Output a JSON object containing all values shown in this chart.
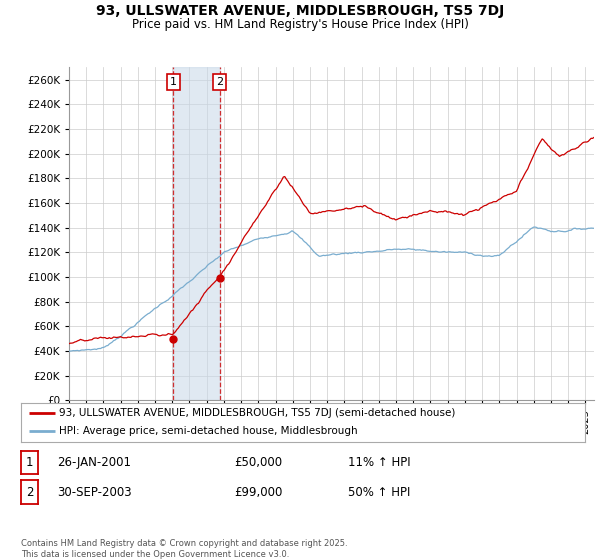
{
  "title": "93, ULLSWATER AVENUE, MIDDLESBROUGH, TS5 7DJ",
  "subtitle": "Price paid vs. HM Land Registry's House Price Index (HPI)",
  "ylim": [
    0,
    270000
  ],
  "yticks": [
    0,
    20000,
    40000,
    60000,
    80000,
    100000,
    120000,
    140000,
    160000,
    180000,
    200000,
    220000,
    240000,
    260000
  ],
  "xlim_start": 1995.0,
  "xlim_end": 2025.5,
  "house_color": "#cc0000",
  "hpi_color": "#7aadcf",
  "purchase1_date": 2001.07,
  "purchase1_price": 50000,
  "purchase2_date": 2003.75,
  "purchase2_price": 99000,
  "legend_house": "93, ULLSWATER AVENUE, MIDDLESBROUGH, TS5 7DJ (semi-detached house)",
  "legend_hpi": "HPI: Average price, semi-detached house, Middlesbrough",
  "table_row1": [
    "1",
    "26-JAN-2001",
    "£50,000",
    "11% ↑ HPI"
  ],
  "table_row2": [
    "2",
    "30-SEP-2003",
    "£99,000",
    "50% ↑ HPI"
  ],
  "footnote": "Contains HM Land Registry data © Crown copyright and database right 2025.\nThis data is licensed under the Open Government Licence v3.0.",
  "background_color": "#ffffff",
  "grid_color": "#cccccc"
}
